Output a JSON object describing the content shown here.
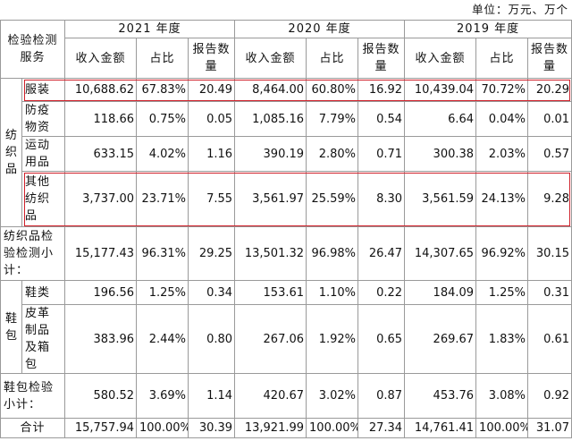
{
  "unit": "单位：万元、万个",
  "table": {
    "corner": "检验检测服务",
    "years": [
      "2021 年度",
      "2020 年度",
      "2019 年度"
    ],
    "subheaders": [
      "收入金额",
      "占比",
      "报告数量"
    ],
    "blocks": [
      {
        "group": "纺织品",
        "rows": [
          {
            "item": "服装",
            "highlight": true,
            "cells": [
              "10,688.62",
              "67.83%",
              "20.49",
              "8,464.00",
              "60.80%",
              "16.92",
              "10,439.04",
              "70.72%",
              "20.29"
            ]
          },
          {
            "item": "防疫物资",
            "cells": [
              "118.66",
              "0.75%",
              "0.05",
              "1,085.16",
              "7.79%",
              "0.54",
              "6.64",
              "0.04%",
              "0.01"
            ]
          },
          {
            "item": "运动用品",
            "cells": [
              "633.15",
              "4.02%",
              "1.16",
              "390.19",
              "2.80%",
              "0.71",
              "300.38",
              "2.03%",
              "0.57"
            ]
          },
          {
            "item": "其他纺织品",
            "highlight": true,
            "cells": [
              "3,737.00",
              "23.71%",
              "7.55",
              "3,561.97",
              "25.59%",
              "8.30",
              "3,561.59",
              "24.13%",
              "9.28"
            ]
          }
        ],
        "subtotal": {
          "label": "纺织品检验检测小计：",
          "cells": [
            "15,177.43",
            "96.31%",
            "29.25",
            "13,501.32",
            "96.98%",
            "26.47",
            "14,307.65",
            "96.92%",
            "30.15"
          ]
        }
      },
      {
        "group": "鞋包",
        "rows": [
          {
            "item": "鞋类",
            "cells": [
              "196.56",
              "1.25%",
              "0.34",
              "153.61",
              "1.10%",
              "0.22",
              "184.09",
              "1.25%",
              "0.31"
            ]
          },
          {
            "item": "皮革制品及箱包",
            "cells": [
              "383.96",
              "2.44%",
              "0.80",
              "267.06",
              "1.92%",
              "0.65",
              "269.67",
              "1.83%",
              "0.61"
            ]
          }
        ],
        "subtotal": {
          "label": "鞋包检验小计：",
          "cells": [
            "580.52",
            "3.69%",
            "1.14",
            "420.67",
            "3.02%",
            "0.87",
            "453.76",
            "3.08%",
            "0.92"
          ]
        }
      }
    ],
    "total": {
      "label": "合计",
      "cells": [
        "15,757.94",
        "100.00%",
        "30.39",
        "13,921.99",
        "100.00%",
        "27.34",
        "14,761.41",
        "100.00%",
        "31.07"
      ]
    }
  }
}
